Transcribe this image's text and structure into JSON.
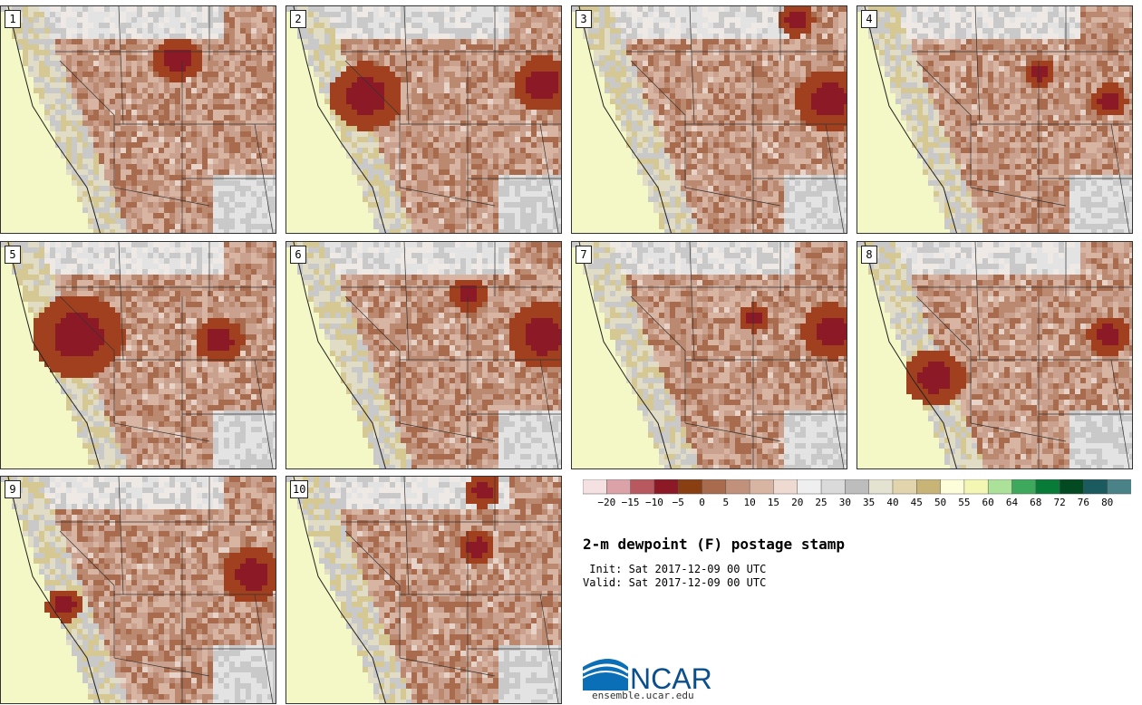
{
  "panels": [
    {
      "label": "1",
      "seed": 11,
      "hot": [
        [
          0.63,
          0.22,
          0.8
        ]
      ]
    },
    {
      "label": "2",
      "seed": 23,
      "hot": [
        [
          0.28,
          0.38,
          1.2
        ],
        [
          0.92,
          0.33,
          1.0
        ]
      ]
    },
    {
      "label": "3",
      "seed": 37,
      "hot": [
        [
          0.92,
          0.4,
          1.1
        ],
        [
          0.8,
          0.05,
          0.6
        ]
      ]
    },
    {
      "label": "4",
      "seed": 41,
      "hot": [
        [
          0.65,
          0.28,
          0.5
        ],
        [
          0.9,
          0.4,
          0.6
        ]
      ]
    },
    {
      "label": "5",
      "seed": 53,
      "hot": [
        [
          0.27,
          0.4,
          1.5
        ],
        [
          0.78,
          0.42,
          0.8
        ]
      ]
    },
    {
      "label": "6",
      "seed": 67,
      "hot": [
        [
          0.92,
          0.4,
          1.2
        ],
        [
          0.65,
          0.22,
          0.6
        ]
      ]
    },
    {
      "label": "7",
      "seed": 71,
      "hot": [
        [
          0.93,
          0.38,
          1.0
        ],
        [
          0.65,
          0.32,
          0.5
        ]
      ]
    },
    {
      "label": "8",
      "seed": 83,
      "hot": [
        [
          0.27,
          0.58,
          1.0
        ],
        [
          0.9,
          0.4,
          0.7
        ]
      ]
    },
    {
      "label": "9",
      "seed": 97,
      "hot": [
        [
          0.9,
          0.42,
          1.0
        ],
        [
          0.22,
          0.55,
          0.6
        ]
      ]
    },
    {
      "label": "10",
      "seed": 109,
      "hot": [
        [
          0.68,
          0.3,
          0.6
        ],
        [
          0.7,
          0.05,
          0.6
        ]
      ]
    }
  ],
  "colorbar": {
    "colors": [
      "#f5e1e1",
      "#dba3a7",
      "#b8595f",
      "#8c1a26",
      "#8a3f12",
      "#a86b4e",
      "#c2917b",
      "#d8b5a3",
      "#eedad0",
      "#efefef",
      "#dadada",
      "#bdbdbd",
      "#e4e2d0",
      "#e2d5ad",
      "#c8b477",
      "#fefdd9",
      "#f3f7b3",
      "#ace19a",
      "#3ea95c",
      "#087b39",
      "#034a23",
      "#1b5a5e",
      "#4b8288"
    ],
    "ticks": [
      "-20",
      "-15",
      "-10",
      "-5",
      "0",
      "5",
      "10",
      "15",
      "20",
      "25",
      "30",
      "35",
      "40",
      "45",
      "50",
      "55",
      "60",
      "64",
      "68",
      "72",
      "76",
      "80"
    ]
  },
  "title": "2-m dewpoint (F) postage stamp",
  "init_label": " Init:",
  "init_value": "Sat 2017-12-09 00 UTC",
  "valid_label": "Valid:",
  "valid_value": "Sat 2017-12-09 00 UTC",
  "logo": {
    "text": "NCAR",
    "color": "#0a4f8c",
    "url": "ensemble.ucar.edu"
  }
}
